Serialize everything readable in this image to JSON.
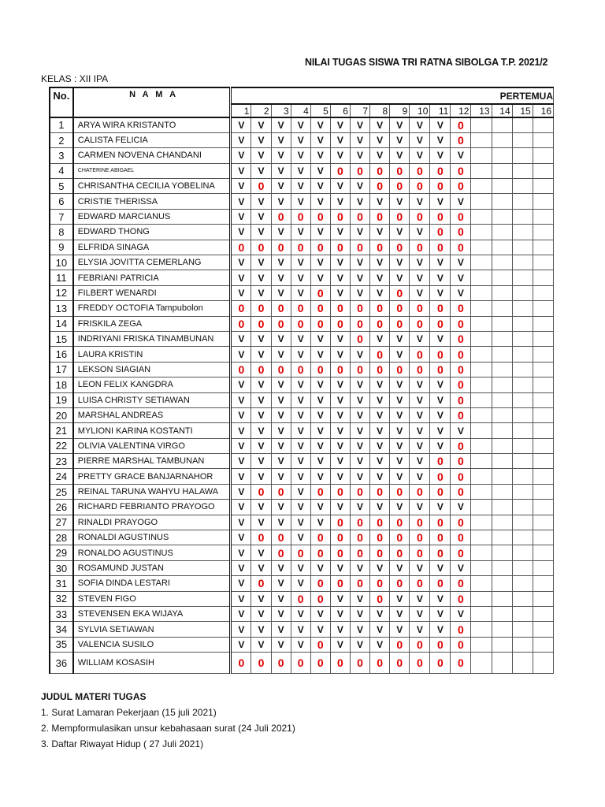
{
  "title": "NILAI TUGAS  SISWA TRI RATNA  SIBOLGA T.P. 2021/2",
  "kelas": "KELAS : XII IPA",
  "headers": {
    "no": "No.",
    "nama": "N A M A",
    "pertemuan": "PERTEMUA"
  },
  "meetings": [
    "1",
    "2",
    "3",
    "4",
    "5",
    "6",
    "7",
    "8",
    "9",
    "10",
    "11",
    "12",
    "13",
    "14",
    "15",
    "16"
  ],
  "colors": {
    "zero": "#e00000",
    "check": "#111111"
  },
  "students": [
    {
      "no": "1",
      "name": "ARYA WIRA KRISTANTO",
      "grades": [
        "V",
        "V",
        "V",
        "V",
        "V",
        "V",
        "V",
        "V",
        "V",
        "V",
        "V",
        "0"
      ]
    },
    {
      "no": "2",
      "name": "CALISTA FELICIA",
      "grades": [
        "V",
        "V",
        "V",
        "V",
        "V",
        "V",
        "V",
        "V",
        "V",
        "V",
        "V",
        "0"
      ]
    },
    {
      "no": "3",
      "name": "CARMEN NOVENA CHANDANI",
      "grades": [
        "V",
        "V",
        "V",
        "V",
        "V",
        "V",
        "V",
        "V",
        "V",
        "V",
        "V",
        "V"
      ]
    },
    {
      "no": "4",
      "name": "CHATERINE ABIGAEL",
      "small": true,
      "grades": [
        "V",
        "V",
        "V",
        "V",
        "V",
        "0",
        "0",
        "0",
        "0",
        "0",
        "0",
        "0"
      ]
    },
    {
      "no": "5",
      "name": "CHRISANTHA CECILIA YOBELINA",
      "grades": [
        "V",
        "0",
        "V",
        "V",
        "V",
        "V",
        "V",
        "0",
        "0",
        "0",
        "0",
        "0"
      ]
    },
    {
      "no": "6",
      "name": "CRISTIE THERISSA",
      "grades": [
        "V",
        "V",
        "V",
        "V",
        "V",
        "V",
        "V",
        "V",
        "V",
        "V",
        "V",
        "V"
      ]
    },
    {
      "no": "7",
      "name": "EDWARD MARCIANUS",
      "grades": [
        "V",
        "V",
        "0",
        "0",
        "0",
        "0",
        "0",
        "0",
        "0",
        "0",
        "0",
        "0"
      ]
    },
    {
      "no": "8",
      "name": "EDWARD THONG",
      "grades": [
        "V",
        "V",
        "V",
        "V",
        "V",
        "V",
        "V",
        "V",
        "V",
        "V",
        "0",
        "0"
      ]
    },
    {
      "no": "9",
      "name": "ELFRIDA SINAGA",
      "grades": [
        "0",
        "0",
        "0",
        "0",
        "0",
        "0",
        "0",
        "0",
        "0",
        "0",
        "0",
        "0"
      ]
    },
    {
      "no": "10",
      "name": "ELYSIA JOVITTA CEMERLANG",
      "grades": [
        "V",
        "V",
        "V",
        "V",
        "V",
        "V",
        "V",
        "V",
        "V",
        "V",
        "V",
        "V"
      ]
    },
    {
      "no": "11",
      "name": "FEBRIANI PATRICIA",
      "grades": [
        "V",
        "V",
        "V",
        "V",
        "V",
        "V",
        "V",
        "V",
        "V",
        "V",
        "V",
        "V"
      ]
    },
    {
      "no": "12",
      "name": "FILBERT WENARDI",
      "grades": [
        "V",
        "V",
        "V",
        "V",
        "0",
        "V",
        "V",
        "V",
        "0",
        "V",
        "V",
        "V"
      ]
    },
    {
      "no": "13",
      "name": "FREDDY OCTOFIA Tampubolon",
      "grades": [
        "0",
        "0",
        "0",
        "0",
        "0",
        "0",
        "0",
        "0",
        "0",
        "0",
        "0",
        "0"
      ]
    },
    {
      "no": "14",
      "name": "FRISKILA ZEGA",
      "grades": [
        "0",
        "0",
        "0",
        "0",
        "0",
        "0",
        "0",
        "0",
        "0",
        "0",
        "0",
        "0"
      ]
    },
    {
      "no": "15",
      "name": "INDRIYANI FRISKA TINAMBUNAN",
      "grades": [
        "V",
        "V",
        "V",
        "V",
        "V",
        "V",
        "0",
        "V",
        "V",
        "V",
        "V",
        "0"
      ]
    },
    {
      "no": "16",
      "name": "LAURA KRISTIN",
      "grades": [
        "V",
        "V",
        "V",
        "V",
        "V",
        "V",
        "V",
        "0",
        "V",
        "0",
        "0",
        "0"
      ]
    },
    {
      "no": "17",
      "name": "LEKSON SIAGIAN",
      "grades": [
        "0",
        "0",
        "0",
        "0",
        "0",
        "0",
        "0",
        "0",
        "0",
        "0",
        "0",
        "0"
      ]
    },
    {
      "no": "18",
      "name": "LEON FELIX KANGDRA",
      "grades": [
        "V",
        "V",
        "V",
        "V",
        "V",
        "V",
        "V",
        "V",
        "V",
        "V",
        "V",
        "0"
      ]
    },
    {
      "no": "19",
      "name": "LUISA CHRISTY SETIAWAN",
      "grades": [
        "V",
        "V",
        "V",
        "V",
        "V",
        "V",
        "V",
        "V",
        "V",
        "V",
        "V",
        "0"
      ]
    },
    {
      "no": "20",
      "name": "MARSHAL ANDREAS",
      "grades": [
        "V",
        "V",
        "V",
        "V",
        "V",
        "V",
        "V",
        "V",
        "V",
        "V",
        "V",
        "0"
      ]
    },
    {
      "no": "21",
      "name": "MYLIONI KARINA KOSTANTI",
      "grades": [
        "V",
        "V",
        "V",
        "V",
        "V",
        "V",
        "V",
        "V",
        "V",
        "V",
        "V",
        "V"
      ]
    },
    {
      "no": "22",
      "name": "OLIVIA VALENTINA VIRGO",
      "grades": [
        "V",
        "V",
        "V",
        "V",
        "V",
        "V",
        "V",
        "V",
        "V",
        "V",
        "V",
        "0"
      ]
    },
    {
      "no": "23",
      "name": "PIERRE MARSHAL TAMBUNAN",
      "grades": [
        "V",
        "V",
        "V",
        "V",
        "V",
        "V",
        "V",
        "V",
        "V",
        "V",
        "0",
        "0"
      ]
    },
    {
      "no": "24",
      "name": "PRETTY GRACE BANJARNAHOR",
      "grades": [
        "V",
        "V",
        "V",
        "V",
        "V",
        "V",
        "V",
        "V",
        "V",
        "V",
        "0",
        "0"
      ]
    },
    {
      "no": "25",
      "name": "REINAL TARUNA WAHYU HALAWA",
      "grades": [
        "V",
        "0",
        "0",
        "V",
        "0",
        "0",
        "0",
        "0",
        "0",
        "0",
        "0",
        "0"
      ]
    },
    {
      "no": "26",
      "name": "RICHARD FEBRIANTO PRAYOGO",
      "grades": [
        "V",
        "V",
        "V",
        "V",
        "V",
        "V",
        "V",
        "V",
        "V",
        "V",
        "V",
        "V"
      ]
    },
    {
      "no": "27",
      "name": "RINALDI PRAYOGO",
      "grades": [
        "V",
        "V",
        "V",
        "V",
        "V",
        "0",
        "0",
        "0",
        "0",
        "0",
        "0",
        "0"
      ]
    },
    {
      "no": "28",
      "name": "RONALDI AGUSTINUS",
      "grades": [
        "V",
        "0",
        "0",
        "V",
        "0",
        "0",
        "0",
        "0",
        "0",
        "0",
        "0",
        "0"
      ]
    },
    {
      "no": "29",
      "name": "RONALDO AGUSTINUS",
      "grades": [
        "V",
        "V",
        "0",
        "0",
        "0",
        "0",
        "0",
        "0",
        "0",
        "0",
        "0",
        "0"
      ]
    },
    {
      "no": "30",
      "name": "ROSAMUND JUSTAN",
      "grades": [
        "V",
        "V",
        "V",
        "V",
        "V",
        "V",
        "V",
        "V",
        "V",
        "V",
        "V",
        "V"
      ]
    },
    {
      "no": "31",
      "name": "SOFIA DINDA LESTARI",
      "grades": [
        "V",
        "0",
        "V",
        "V",
        "0",
        "0",
        "0",
        "0",
        "0",
        "0",
        "0",
        "0"
      ]
    },
    {
      "no": "32",
      "name": "STEVEN FIGO",
      "grades": [
        "V",
        "V",
        "V",
        "0",
        "0",
        "V",
        "V",
        "0",
        "V",
        "V",
        "V",
        "0"
      ]
    },
    {
      "no": "33",
      "name": "STEVENSEN EKA WIJAYA",
      "grades": [
        "V",
        "V",
        "V",
        "V",
        "V",
        "V",
        "V",
        "V",
        "V",
        "V",
        "V",
        "V"
      ]
    },
    {
      "no": "34",
      "name": "SYLVIA SETIAWAN",
      "grades": [
        "V",
        "V",
        "V",
        "V",
        "V",
        "V",
        "V",
        "V",
        "V",
        "V",
        "V",
        "0"
      ]
    },
    {
      "no": "35",
      "name": "VALENCIA SUSILO",
      "grades": [
        "V",
        "V",
        "V",
        "V",
        "0",
        "V",
        "V",
        "V",
        "0",
        "0",
        "0",
        "0"
      ]
    },
    {
      "no": "36",
      "name": "WILLIAM KOSASIH",
      "grades": [
        "0",
        "0",
        "0",
        "0",
        "0",
        "0",
        "0",
        "0",
        "0",
        "0",
        "0",
        "0"
      ]
    }
  ],
  "footer": {
    "heading": "JUDUL MATERI TUGAS",
    "items": [
      "1. Surat Lamaran Pekerjaan  (15 juli 2021)",
      "2. Mempformulasikan unsur kebahasaan surat  (24 Juli 2021)",
      "3. Daftar Riwayat Hidup  ( 27 Juli 2021)"
    ]
  }
}
